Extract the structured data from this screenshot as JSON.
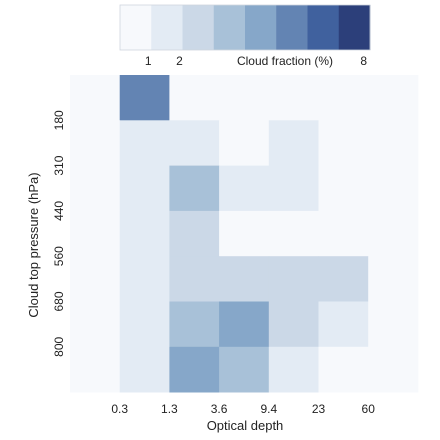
{
  "chart_data": {
    "type": "heatmap",
    "title": "",
    "xlabel": "Optical depth",
    "ylabel": "Cloud top pressure (hPa)",
    "x_tick_labels": [
      "0.3",
      "1.3",
      "3.6",
      "9.4",
      "23",
      "60"
    ],
    "y_tick_labels": [
      "180",
      "310",
      "440",
      "560",
      "680",
      "800"
    ],
    "colorbar": {
      "label": "Cloud fraction (%)",
      "tick_labels": [
        "1",
        "2",
        "8"
      ],
      "levels": 8,
      "colors": [
        "#f7f9fc",
        "#e3ebf4",
        "#cbd8e7",
        "#a8c1d8",
        "#86a7c9",
        "#6384b3",
        "#40619e",
        "#2c3f7a"
      ]
    },
    "legend_position": "top",
    "grid": false,
    "columns": [
      "0–0.3",
      "0.3–1.3",
      "1.3–3.6",
      "3.6–9.4",
      "9.4–23",
      "23–60",
      "60+"
    ],
    "rows": [
      "<180",
      "180–310",
      "310–440",
      "440–560",
      "560–680",
      "680–800",
      ">800"
    ],
    "cell_levels": [
      [
        0,
        5,
        0,
        0,
        0,
        0,
        0
      ],
      [
        0,
        1,
        1,
        0,
        1,
        0,
        0
      ],
      [
        0,
        1,
        3,
        1,
        1,
        0,
        0
      ],
      [
        0,
        1,
        2,
        0,
        0,
        0,
        0
      ],
      [
        0,
        1,
        2,
        2,
        2,
        2,
        0
      ],
      [
        0,
        1,
        3,
        4,
        2,
        1,
        0
      ],
      [
        0,
        1,
        4,
        3,
        1,
        0,
        0
      ]
    ]
  }
}
